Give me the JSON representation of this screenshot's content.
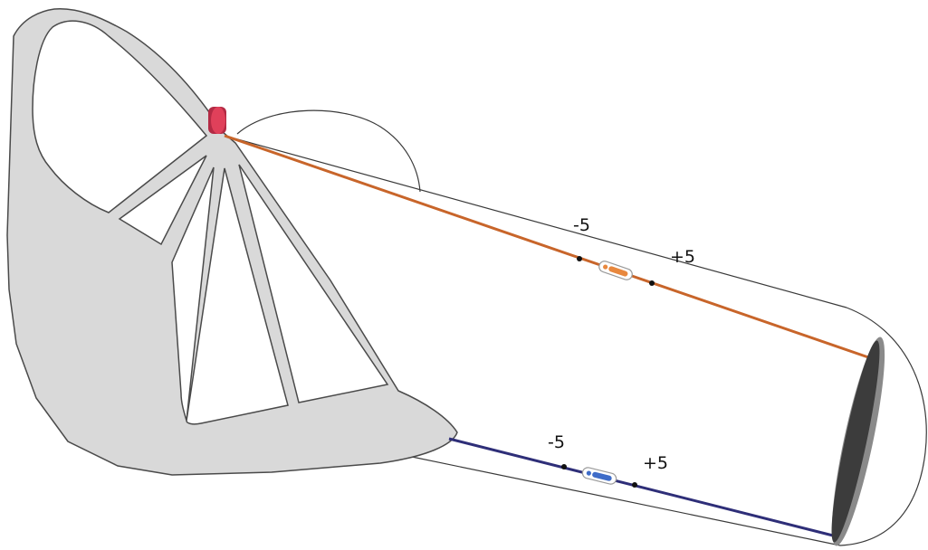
{
  "colors": {
    "frame_fill": "#d9d9d9",
    "frame_stroke": "#4a4a4a",
    "outline": "#3a3a3a",
    "upper_line": "#c8652a",
    "lower_line": "#2e2e78",
    "sensor": "#e0405a",
    "sensor_dark": "#b32a44",
    "disc_dark": "#3c3c3c",
    "disc_light": "#8a8a8a",
    "upper_slider": "#e8883e",
    "lower_slider": "#3e6cc8",
    "dot": "#111111"
  },
  "upper_track": {
    "minus_label": "-5",
    "plus_label": "+5"
  },
  "lower_track": {
    "minus_label": "-5",
    "plus_label": "+5"
  }
}
